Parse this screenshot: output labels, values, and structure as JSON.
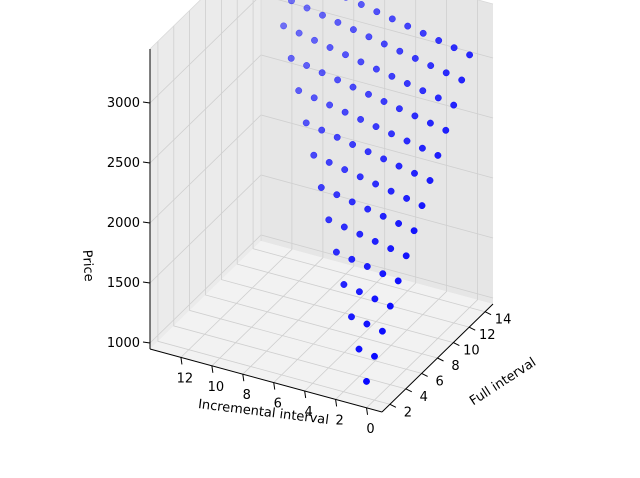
{
  "chart_data": {
    "type": "scatter",
    "projection": "3d",
    "xlabel": "Incremental interval",
    "ylabel": "Full interval",
    "zlabel": "Price",
    "xlim": [
      -1,
      14
    ],
    "ylim": [
      1,
      15
    ],
    "zlim": [
      950,
      3450
    ],
    "x_ticks": [
      "0",
      "2",
      "4",
      "6",
      "8",
      "10",
      "12"
    ],
    "x_tick_values": [
      0,
      2,
      4,
      6,
      8,
      10,
      12
    ],
    "y_ticks": [
      "2",
      "4",
      "6",
      "8",
      "10",
      "12",
      "14"
    ],
    "y_tick_values": [
      2,
      4,
      6,
      8,
      10,
      12,
      14
    ],
    "z_ticks": [
      "1000",
      "1500",
      "2000",
      "2500",
      "3000"
    ],
    "z_tick_values": [
      1000,
      1500,
      2000,
      2500,
      3000
    ],
    "grid": true,
    "marker_color": "#0000ff",
    "pane_color": "#f2f2f2",
    "points_rule": "integer points with 0 <= incremental <= full - 1, full 1..14; price = 1000 + 170*full - 25*(full - 1 - incremental)",
    "full_range": [
      1,
      14
    ],
    "price_base": 1000,
    "price_per_full": 170,
    "price_per_step_below_diagonal": 25
  }
}
